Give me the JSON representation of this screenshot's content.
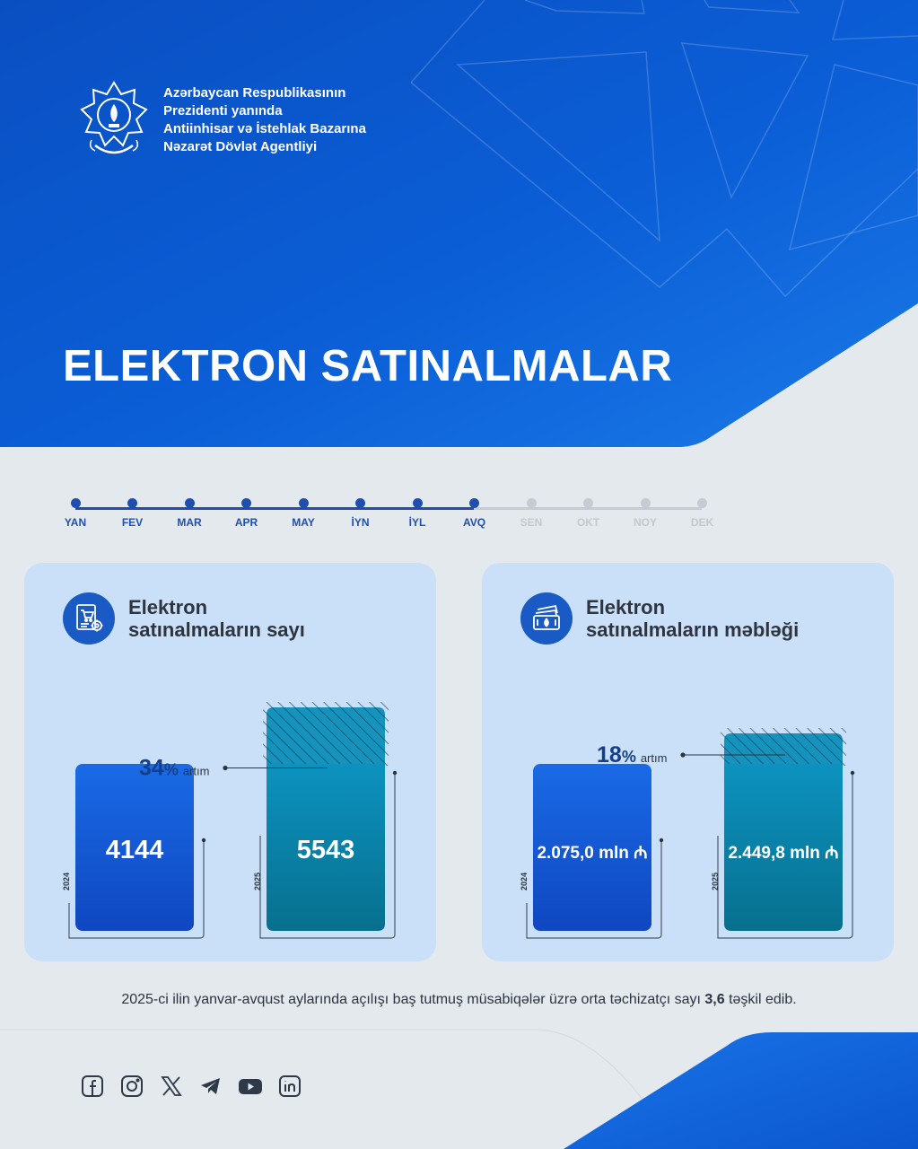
{
  "agency": {
    "lines": [
      "Azərbaycan Respublikasının",
      "Prezidenti yanında",
      "Antiinhisar və İstehlak Bazarına",
      "Nəzarət Dövlət Agentliyi"
    ],
    "emblem_icon": "state-emblem-icon"
  },
  "title": "ELEKTRON SATINALMALAR",
  "timeline": {
    "months": [
      "YAN",
      "FEV",
      "MAR",
      "APR",
      "MAY",
      "İYN",
      "İYL",
      "AVQ",
      "SEN",
      "OKT",
      "NOY",
      "DEK"
    ],
    "completed_count": 8
  },
  "chart_data": [
    {
      "type": "bar",
      "title": "Elektron satınalmaların sayı",
      "title_lines": [
        "Elektron",
        "satınalmaların sayı"
      ],
      "icon": "purchase-document-icon",
      "categories": [
        "2024",
        "2025"
      ],
      "values": [
        4144,
        5543
      ],
      "value_labels": [
        "4144",
        "5543"
      ],
      "unit": "",
      "growth": {
        "value": "34",
        "suffix": "%",
        "label": "artım"
      },
      "colors": [
        "#1659d1",
        "#0a7c9c"
      ]
    },
    {
      "type": "bar",
      "title": "Elektron satınalmaların məbləği",
      "title_lines": [
        "Elektron",
        "satınalmaların məbləği"
      ],
      "icon": "money-bills-icon",
      "categories": [
        "2024",
        "2025"
      ],
      "values": [
        2075.0,
        2449.8
      ],
      "value_labels": [
        "2.075,0",
        "2.449,8"
      ],
      "unit": "mln",
      "currency_symbol": "₼",
      "growth": {
        "value": "18",
        "suffix": "%",
        "label": "artım"
      },
      "colors": [
        "#1659d1",
        "#0a7c9c"
      ]
    }
  ],
  "footnote": {
    "before": "2025-ci ilin yanvar-avqust aylarında açılışı baş tutmuş müsabiqələr üzrə orta təchizatçı sayı ",
    "highlight": "3,6",
    "after": " təşkil edib."
  },
  "social": [
    "facebook-icon",
    "instagram-icon",
    "x-icon",
    "telegram-icon",
    "youtube-icon",
    "linkedin-icon"
  ],
  "colors": {
    "header_blue": "#0b5bd3",
    "timeline_active": "#1f4fae",
    "timeline_inactive": "#c5cbd2",
    "card_bg": "#c9e0f8",
    "bar_2024": "#1659d1",
    "bar_2025": "#0a7c9c"
  }
}
